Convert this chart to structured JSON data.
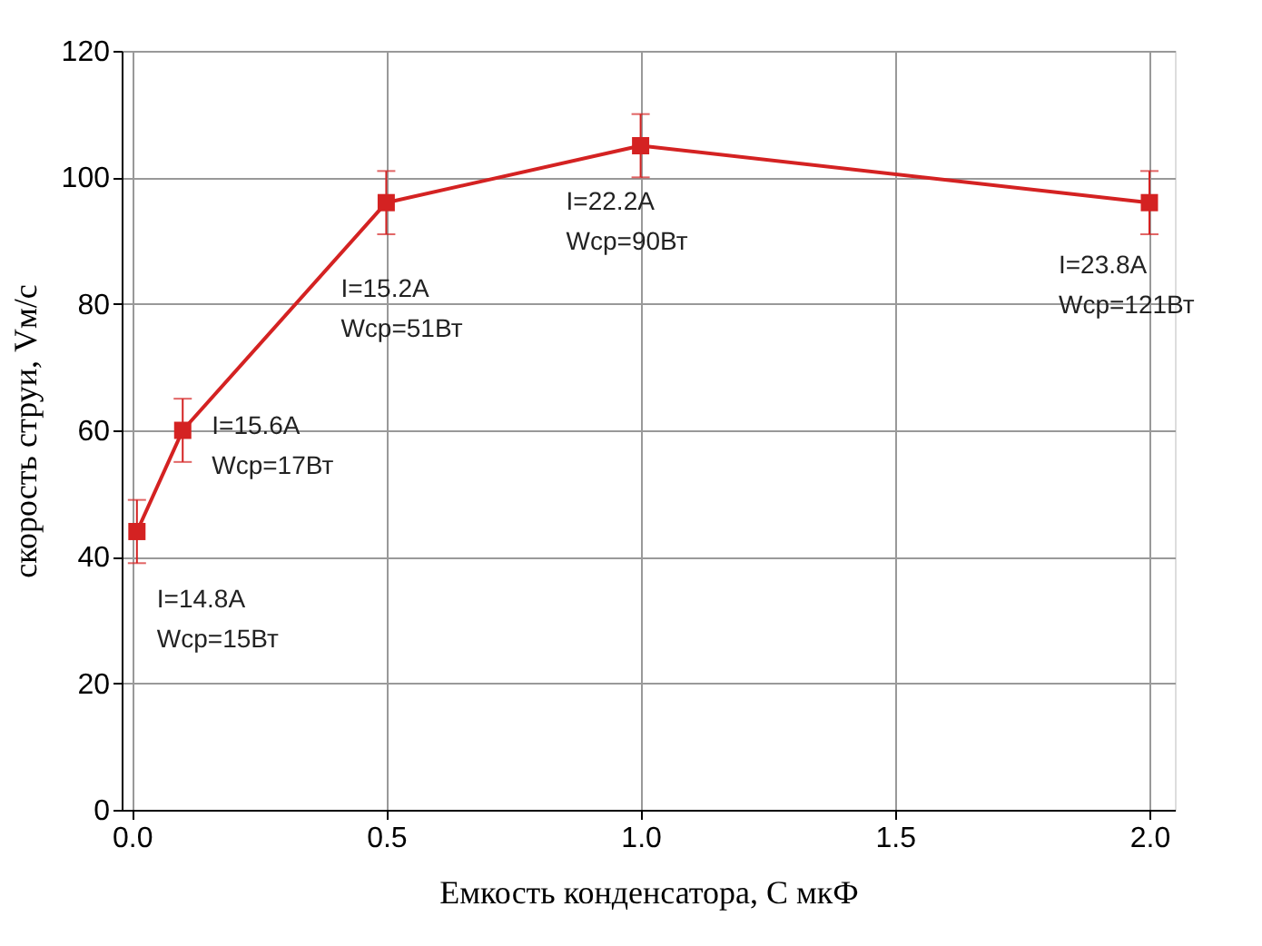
{
  "chart_data": {
    "type": "line",
    "xlabel": "Емкость конденсатора, С мкФ",
    "ylabel": "скорость струи, Vм/с",
    "x": [
      0.01,
      0.1,
      0.5,
      1.0,
      2.0
    ],
    "series": [
      {
        "color": "#d42222",
        "values": [
          44,
          60,
          96,
          105,
          96
        ],
        "errors": [
          5,
          5,
          5,
          5,
          5
        ]
      }
    ],
    "xlim": [
      -0.02,
      2.05
    ],
    "xticks": [
      {
        "value": 0,
        "label": "0.0"
      },
      0.5,
      {
        "value": 1,
        "label": "1.0"
      },
      1.5,
      {
        "value": 2,
        "label": "2.0"
      }
    ],
    "ylim": [
      0,
      120
    ],
    "yticks": [
      0,
      20,
      40,
      60,
      80,
      100,
      120
    ],
    "grid": true,
    "marker": "square",
    "line_style": "solid",
    "annotations": [
      {
        "text": "I=14.8A\nWср=15Вт",
        "x": 0.01,
        "y": 44
      },
      {
        "text": "I=15.6A\nWср=17Вт",
        "x": 0.1,
        "y": 60
      },
      {
        "text": "I=15.2A\nWср=51Вт",
        "x": 0.5,
        "y": 96
      },
      {
        "text": "I=22.2A\nWср=90Вт",
        "x": 1.0,
        "y": 105
      },
      {
        "text": "I=23.8A\nWср=121Вт",
        "x": 2.0,
        "y": 96
      }
    ]
  }
}
